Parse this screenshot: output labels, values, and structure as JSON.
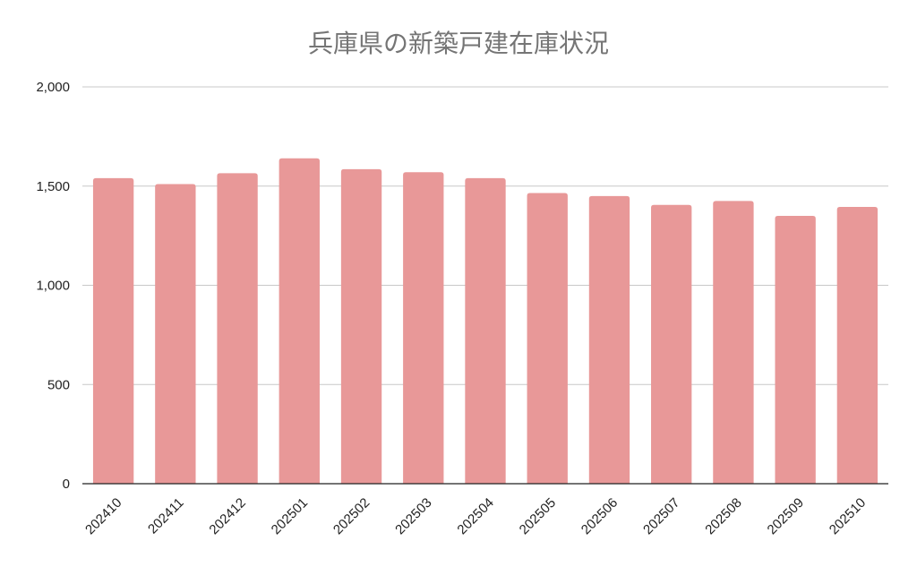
{
  "chart_data": {
    "type": "bar",
    "title": "兵庫県の新築戸建在庫状況",
    "xlabel": "",
    "ylabel": "",
    "categories": [
      "202410",
      "202411",
      "202412",
      "202501",
      "202502",
      "202503",
      "202504",
      "202505",
      "202506",
      "202507",
      "202508",
      "202509",
      "202510"
    ],
    "values": [
      1540,
      1510,
      1565,
      1640,
      1585,
      1570,
      1540,
      1465,
      1450,
      1405,
      1425,
      1350,
      1395
    ],
    "ylim": [
      0,
      2000
    ],
    "y_ticks": [
      0,
      500,
      1000,
      1500,
      2000
    ],
    "y_tick_labels": [
      "0",
      "500",
      "1,000",
      "1,500",
      "2,000"
    ],
    "grid": true,
    "legend": "none",
    "bar_color": "#e89898",
    "x_tick_rotation": "-45deg"
  }
}
